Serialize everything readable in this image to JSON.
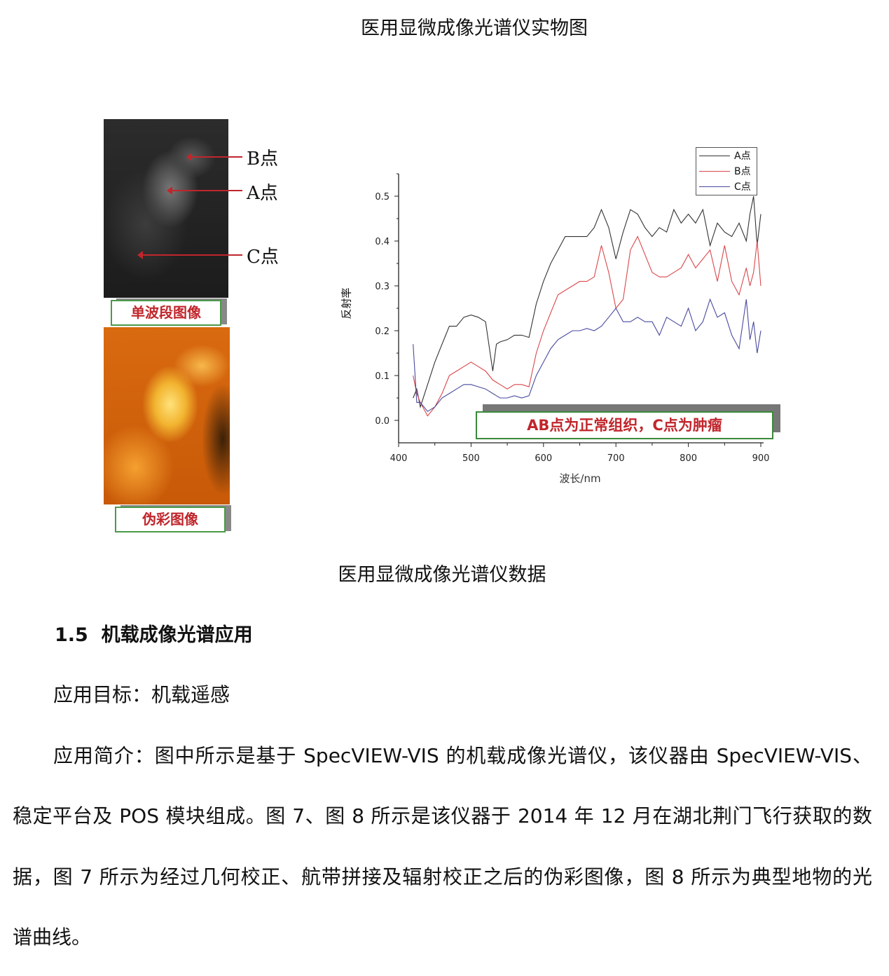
{
  "figure_top_caption": "医用显微成像光谱仪实物图",
  "image_labels": {
    "single_band": "单波段图像",
    "false_color": "伪彩图像"
  },
  "point_labels": {
    "a": "A点",
    "b": "B点",
    "c": "C点"
  },
  "annotation": "AB点为正常组织，C点为肿瘤",
  "figure_caption": "医用显微成像光谱仪数据",
  "section": {
    "number": "1.5",
    "title": "机载成像光谱应用"
  },
  "target": "应用目标：机载遥感",
  "intro_lines": [
    "应用简介：图中所示是基于 SpecVIEW-VIS 的机载成像光谱仪，该仪器由 SpecVIEW-VIS、",
    "稳定平台及 POS 模块组成。图 7、图 8 所示是该仪器于 2014 年 12 月在湖北荆门飞行获取的数",
    "据，图 7 所示为经过几何校正、航带拼接及辐射校正之后的伪彩图像，图 8 所示为典型地物的光",
    "谱曲线。"
  ],
  "chart_data": {
    "type": "line",
    "xlabel": "波长/nm",
    "ylabel": "反射率",
    "xlim": [
      400,
      900
    ],
    "ylim": [
      -0.05,
      0.55
    ],
    "xticks": [
      "400",
      "500",
      "600",
      "700",
      "800",
      "900"
    ],
    "yticks": [
      "0.0",
      "0.1",
      "0.2",
      "0.3",
      "0.4",
      "0.5"
    ],
    "grid": false,
    "legend": "top-right",
    "x": [
      420,
      425,
      430,
      440,
      450,
      460,
      470,
      480,
      490,
      500,
      510,
      520,
      530,
      535,
      540,
      550,
      560,
      570,
      580,
      590,
      600,
      610,
      620,
      630,
      640,
      650,
      660,
      670,
      680,
      690,
      700,
      710,
      720,
      730,
      740,
      750,
      760,
      770,
      780,
      790,
      800,
      810,
      820,
      830,
      840,
      850,
      860,
      870,
      880,
      885,
      890,
      895,
      900
    ],
    "series": [
      {
        "name": "A点",
        "color": "#333333",
        "values": [
          0.05,
          0.07,
          0.03,
          0.08,
          0.13,
          0.17,
          0.21,
          0.21,
          0.23,
          0.235,
          0.23,
          0.22,
          0.11,
          0.17,
          0.175,
          0.18,
          0.19,
          0.19,
          0.185,
          0.26,
          0.31,
          0.35,
          0.38,
          0.41,
          0.41,
          0.41,
          0.41,
          0.43,
          0.47,
          0.43,
          0.36,
          0.42,
          0.47,
          0.46,
          0.43,
          0.41,
          0.43,
          0.42,
          0.47,
          0.44,
          0.46,
          0.44,
          0.47,
          0.39,
          0.44,
          0.42,
          0.41,
          0.44,
          0.4,
          0.46,
          0.5,
          0.39,
          0.46
        ]
      },
      {
        "name": "B点",
        "color": "#d9474b",
        "values": [
          0.1,
          0.06,
          0.04,
          0.01,
          0.03,
          0.06,
          0.1,
          0.11,
          0.12,
          0.13,
          0.12,
          0.11,
          0.09,
          0.085,
          0.08,
          0.07,
          0.08,
          0.08,
          0.075,
          0.15,
          0.2,
          0.24,
          0.28,
          0.29,
          0.3,
          0.31,
          0.31,
          0.32,
          0.39,
          0.33,
          0.25,
          0.27,
          0.38,
          0.41,
          0.37,
          0.33,
          0.32,
          0.32,
          0.33,
          0.34,
          0.37,
          0.34,
          0.36,
          0.38,
          0.31,
          0.39,
          0.31,
          0.28,
          0.34,
          0.3,
          0.33,
          0.4,
          0.3
        ]
      },
      {
        "name": "C点",
        "color": "#4a4aa0",
        "values": [
          0.17,
          0.04,
          0.04,
          0.02,
          0.03,
          0.05,
          0.06,
          0.07,
          0.08,
          0.08,
          0.075,
          0.07,
          0.06,
          0.055,
          0.05,
          0.05,
          0.055,
          0.05,
          0.055,
          0.1,
          0.13,
          0.16,
          0.18,
          0.19,
          0.2,
          0.2,
          0.205,
          0.2,
          0.21,
          0.23,
          0.25,
          0.22,
          0.22,
          0.23,
          0.22,
          0.22,
          0.19,
          0.23,
          0.22,
          0.21,
          0.25,
          0.2,
          0.22,
          0.27,
          0.23,
          0.24,
          0.19,
          0.16,
          0.27,
          0.18,
          0.22,
          0.15,
          0.2
        ]
      }
    ]
  }
}
